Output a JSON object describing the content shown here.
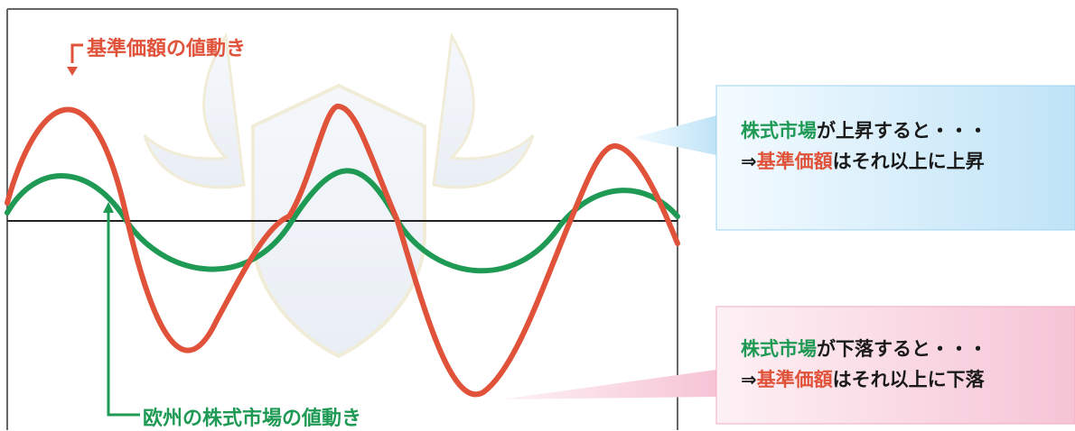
{
  "labels": {
    "fund_curve": "基準価額の値動き",
    "market_curve": "欧州の株式市場の値動き"
  },
  "callout_up": {
    "market": "株式市場",
    "rise_phrase": "が上昇すると・・・",
    "arrow": "⇒",
    "fund": "基準価額",
    "result": "はそれ以上に上昇"
  },
  "callout_down": {
    "market": "株式市場",
    "fall_phrase": "が下落すると・・・",
    "arrow": "⇒",
    "fund": "基準価額",
    "result": "はそれ以上に下落"
  },
  "colors": {
    "fund_line": "#e0533a",
    "market_line": "#1f9a55",
    "callout_up_bg": "#cfe9f8",
    "callout_down_bg": "#f8d3e1"
  }
}
